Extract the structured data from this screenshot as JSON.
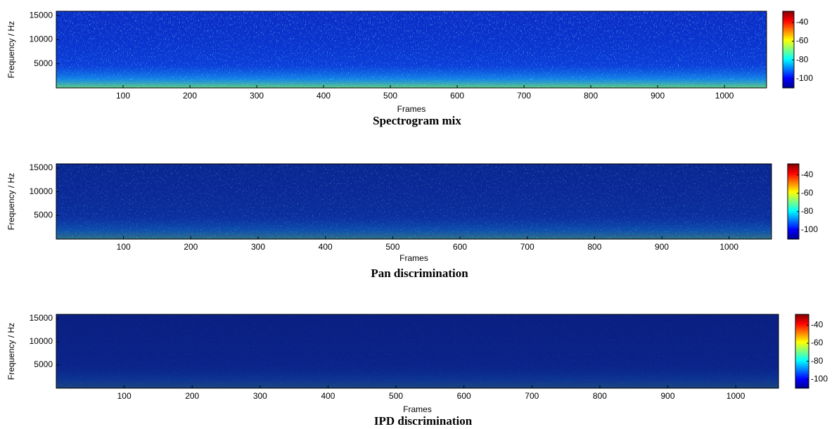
{
  "chart_data": [
    {
      "type": "heatmap",
      "title": "Spectrogram mix",
      "xlabel": "Frames",
      "ylabel": "Frequency / Hz",
      "xlim": [
        0,
        1063
      ],
      "xticks": [
        100,
        200,
        300,
        400,
        500,
        600,
        700,
        800,
        900,
        1000
      ],
      "ylim": [
        0,
        15900
      ],
      "yticks": [
        5000,
        10000,
        15000
      ],
      "colormap": "jet",
      "clim": [
        -110,
        -28
      ],
      "cticks": [
        -100,
        -80,
        -60,
        -40
      ]
    },
    {
      "type": "heatmap",
      "title": "Pan discrimination",
      "xlabel": "Frames",
      "ylabel": "Frequency / Hz",
      "xlim": [
        0,
        1063
      ],
      "xticks": [
        100,
        200,
        300,
        400,
        500,
        600,
        700,
        800,
        900,
        1000
      ],
      "ylim": [
        0,
        15900
      ],
      "yticks": [
        5000,
        10000,
        15000
      ],
      "colormap": "jet",
      "clim": [
        -110,
        -28
      ],
      "cticks": [
        -100,
        -80,
        -60,
        -40
      ]
    },
    {
      "type": "heatmap",
      "title": "IPD discrimination",
      "xlabel": "Frames",
      "ylabel": "Frequency / Hz",
      "xlim": [
        0,
        1063
      ],
      "xticks": [
        100,
        200,
        300,
        400,
        500,
        600,
        700,
        800,
        900,
        1000
      ],
      "ylim": [
        0,
        15900
      ],
      "yticks": [
        5000,
        10000,
        15000
      ],
      "colormap": "jet",
      "clim": [
        -110,
        -28
      ],
      "cticks": [
        -100,
        -80,
        -60,
        -40
      ]
    }
  ]
}
